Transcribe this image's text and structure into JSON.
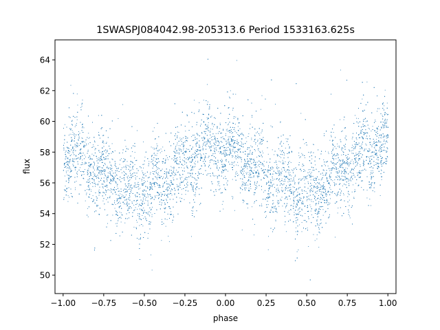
{
  "chart_data": {
    "type": "scatter",
    "title": "1SWASPJ084042.98-205313.6 Period 1533163.625s",
    "xlabel": "phase",
    "ylabel": "flux",
    "xlim": [
      -1.05,
      1.05
    ],
    "ylim": [
      48.8,
      65.3
    ],
    "xticks": [
      -1.0,
      -0.75,
      -0.5,
      -0.25,
      0.0,
      0.25,
      0.5,
      0.75,
      1.0
    ],
    "xtick_labels": [
      "−1.00",
      "−0.75",
      "−0.50",
      "−0.25",
      "0.00",
      "0.25",
      "0.50",
      "0.75",
      "1.00"
    ],
    "yticks": [
      50,
      52,
      54,
      56,
      58,
      60,
      62,
      64
    ],
    "ytick_labels": [
      "50",
      "52",
      "54",
      "56",
      "58",
      "60",
      "62",
      "64"
    ],
    "grid": false,
    "legend": "none",
    "marker_color": "#1f77b4",
    "marker": "point",
    "trend_curve": {
      "description_points_phase": [
        -1.0,
        -0.95,
        -0.9,
        -0.85,
        -0.8,
        -0.75,
        -0.7,
        -0.65,
        -0.6,
        -0.55,
        -0.5,
        -0.45,
        -0.4,
        -0.35,
        -0.3,
        -0.25,
        -0.2,
        -0.15,
        -0.1,
        -0.05,
        0.0,
        0.05,
        0.1,
        0.15,
        0.2,
        0.25,
        0.3,
        0.35,
        0.4,
        0.45,
        0.5,
        0.55,
        0.6,
        0.65,
        0.7,
        0.75,
        0.8,
        0.85,
        0.9,
        0.95,
        1.0
      ],
      "median_flux": [
        58.2,
        58.0,
        57.6,
        57.2,
        56.8,
        56.5,
        56.2,
        56.0,
        55.7,
        55.5,
        55.4,
        55.6,
        56.0,
        56.4,
        56.8,
        57.2,
        57.6,
        57.9,
        58.2,
        58.3,
        58.2,
        58.0,
        57.6,
        57.2,
        56.8,
        56.5,
        56.2,
        56.0,
        55.7,
        55.5,
        55.4,
        55.6,
        56.0,
        56.4,
        56.8,
        57.2,
        57.6,
        57.9,
        58.2,
        58.3,
        58.2
      ]
    },
    "point_count": 9000,
    "spread_flux": 1.3
  }
}
